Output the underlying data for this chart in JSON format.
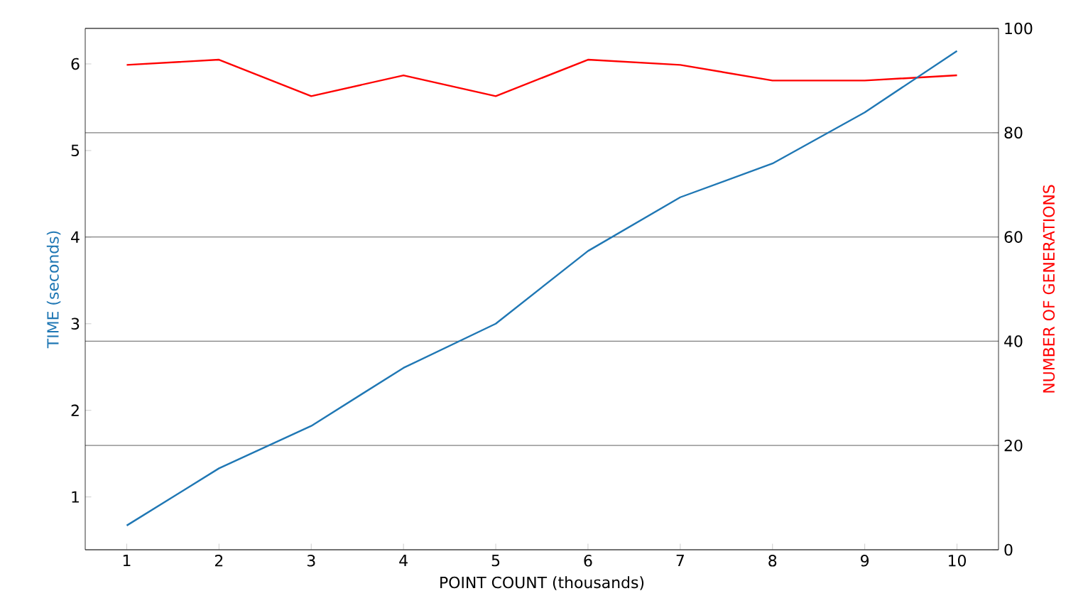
{
  "chart_data": {
    "type": "line",
    "xlabel": "POINT COUNT (thousands)",
    "ylabel": "TIME (seconds)",
    "y2label": "NUMBER OF GENERATIONS",
    "x": [
      1,
      2,
      3,
      4,
      5,
      6,
      7,
      8,
      9,
      10
    ],
    "series": [
      {
        "color": "#1f77b4",
        "axis": "y",
        "values": [
          0.67,
          1.33,
          1.82,
          2.49,
          3.0,
          3.84,
          4.46,
          4.85,
          5.44,
          6.15
        ]
      },
      {
        "color": "#ff0000",
        "axis": "y2",
        "values": [
          93,
          94,
          87,
          91,
          87,
          94,
          93,
          90,
          90,
          91
        ]
      }
    ],
    "xlim": [
      0.55,
      10.45
    ],
    "xticks": [
      1,
      2,
      3,
      4,
      5,
      6,
      7,
      8,
      9,
      10
    ],
    "ylim": [
      0.39,
      6.41
    ],
    "yticks": [
      1,
      2,
      3,
      4,
      5,
      6
    ],
    "y2lim": [
      0,
      100
    ],
    "y2ticks": [
      0,
      20,
      40,
      60,
      80,
      100
    ],
    "grid": "y2",
    "marker": "none",
    "line_style": "solid"
  }
}
